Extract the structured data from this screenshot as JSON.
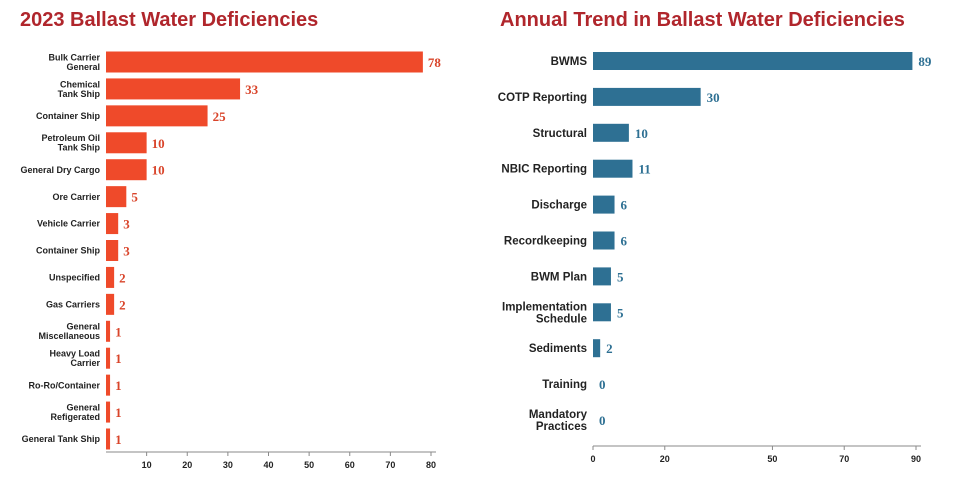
{
  "colors": {
    "title": "#b0262c",
    "left_bar": "#ef4a2a",
    "left_value": "#d9442a",
    "right_bar": "#2e7093",
    "right_value": "#2e7093",
    "category_text": "#222222",
    "axis": "#8a8a8a"
  },
  "chart_data": [
    {
      "type": "bar",
      "orientation": "horizontal",
      "title": "2023 Ballast Water Deficiencies",
      "xlabel": "",
      "ylabel": "",
      "xlim": [
        0,
        80
      ],
      "xticks": [
        10,
        20,
        30,
        40,
        50,
        60,
        70,
        80
      ],
      "grid": false,
      "categories": [
        [
          "Bulk Carrier",
          "General"
        ],
        [
          "Chemical",
          "Tank Ship"
        ],
        [
          "Container Ship"
        ],
        [
          "Petroleum Oil",
          "Tank Ship"
        ],
        [
          "General Dry Cargo"
        ],
        [
          "Ore Carrier"
        ],
        [
          "Vehicle Carrier"
        ],
        [
          "Container Ship"
        ],
        [
          "Unspecified"
        ],
        [
          "Gas Carriers"
        ],
        [
          "General",
          "Miscellaneous"
        ],
        [
          "Heavy Load",
          "Carrier"
        ],
        [
          "Ro-Ro/Container"
        ],
        [
          "General",
          "Refigerated"
        ],
        [
          "General Tank Ship"
        ]
      ],
      "values": [
        78,
        33,
        25,
        10,
        10,
        5,
        3,
        3,
        2,
        2,
        1,
        1,
        1,
        1,
        1
      ]
    },
    {
      "type": "bar",
      "orientation": "horizontal",
      "title": "Annual Trend in Ballast Water Deficiencies",
      "xlabel": "",
      "ylabel": "",
      "xlim": [
        0,
        90
      ],
      "xticks": [
        0,
        20,
        50,
        70,
        90
      ],
      "grid": false,
      "categories": [
        [
          "BWMS"
        ],
        [
          "COTP Reporting"
        ],
        [
          "Structural"
        ],
        [
          "NBIC Reporting"
        ],
        [
          "Discharge"
        ],
        [
          "Recordkeeping"
        ],
        [
          "BWM Plan"
        ],
        [
          "Implementation",
          "Schedule"
        ],
        [
          "Sediments"
        ],
        [
          "Training"
        ],
        [
          "Mandatory",
          "Practices"
        ]
      ],
      "values": [
        89,
        30,
        10,
        11,
        6,
        6,
        5,
        5,
        2,
        0,
        0
      ]
    }
  ]
}
